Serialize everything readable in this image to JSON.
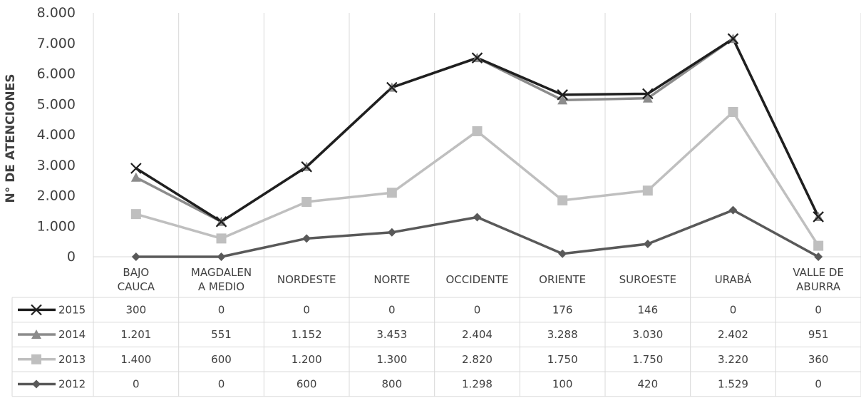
{
  "chart_data": {
    "type": "line",
    "ylabel": "N° DE ATENCIONES",
    "ylim": [
      0,
      8000
    ],
    "yticks": [
      "0",
      "1.000",
      "2.000",
      "3.000",
      "4.000",
      "5.000",
      "6.000",
      "7.000",
      "8.000"
    ],
    "grid": "vertical",
    "legend": "data-table",
    "categories": [
      [
        "BAJO",
        "CAUCA"
      ],
      [
        "MAGDALEN",
        "A MEDIO"
      ],
      [
        "NORDESTE"
      ],
      [
        "NORTE"
      ],
      [
        "OCCIDENTE"
      ],
      [
        "ORIENTE"
      ],
      [
        "SUROESTE"
      ],
      [
        "URABÁ"
      ],
      [
        "VALLE DE",
        "ABURRA"
      ]
    ],
    "series": [
      {
        "name": "2015",
        "marker": "x",
        "color": "#1f1f1f",
        "values": [
          300,
          0,
          0,
          0,
          0,
          176,
          146,
          0,
          0
        ],
        "labels": [
          "300",
          "0",
          "0",
          "0",
          "0",
          "176",
          "146",
          "0",
          "0"
        ]
      },
      {
        "name": "2014",
        "marker": "triangle",
        "color": "#8c8c8c",
        "values": [
          1201,
          551,
          1152,
          3453,
          2404,
          3288,
          3030,
          2402,
          951
        ],
        "labels": [
          "1.201",
          "551",
          "1.152",
          "3.453",
          "2.404",
          "3.288",
          "3.030",
          "2.402",
          "951"
        ]
      },
      {
        "name": "2013",
        "marker": "square",
        "color": "#bfbfbf",
        "values": [
          1400,
          600,
          1200,
          1300,
          2820,
          1750,
          1750,
          3220,
          360
        ],
        "labels": [
          "1.400",
          "600",
          "1.200",
          "1.300",
          "2.820",
          "1.750",
          "1.750",
          "3.220",
          "360"
        ]
      },
      {
        "name": "2012",
        "marker": "diamond",
        "color": "#595959",
        "values": [
          0,
          0,
          600,
          800,
          1298,
          100,
          420,
          1529,
          0
        ],
        "labels": [
          "0",
          "0",
          "600",
          "800",
          "1.298",
          "100",
          "420",
          "1.529",
          "0"
        ]
      }
    ]
  }
}
